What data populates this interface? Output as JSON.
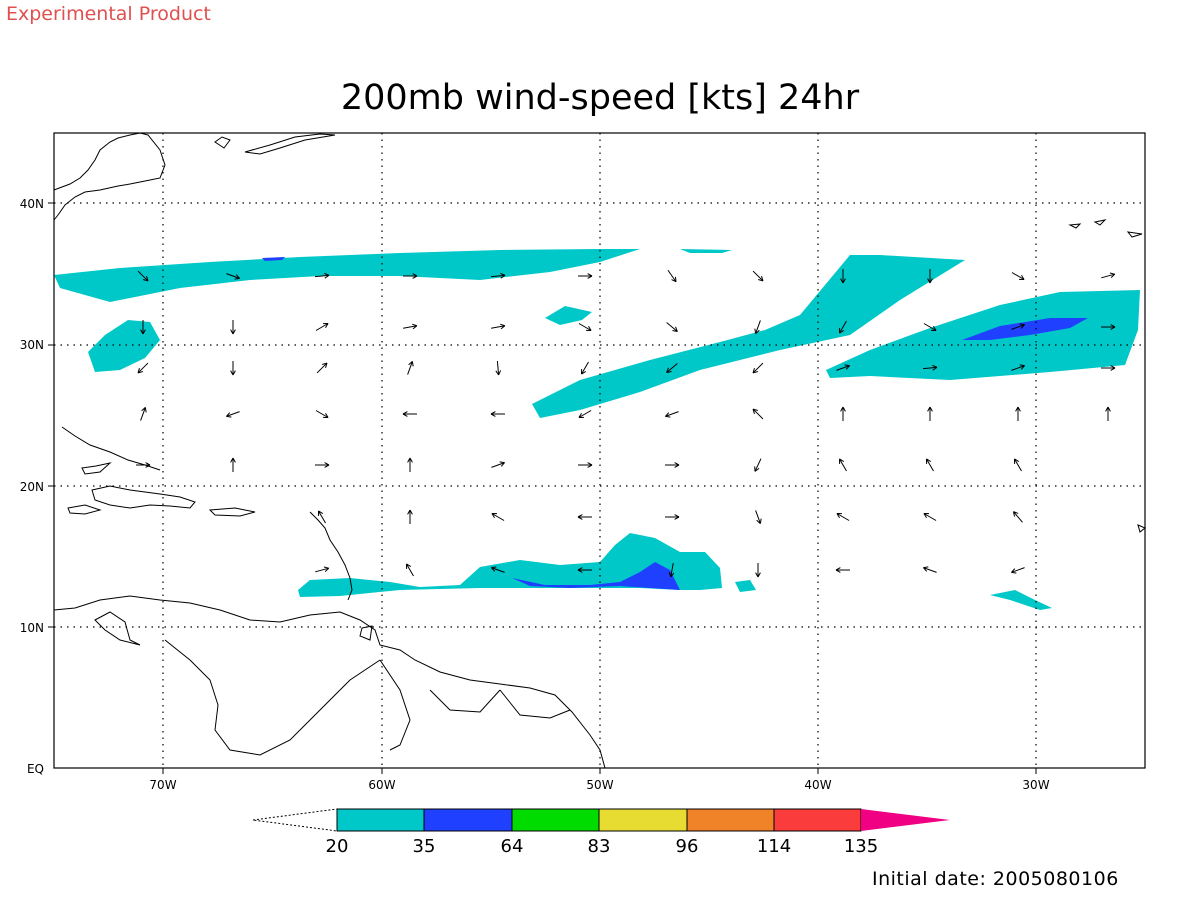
{
  "header": {
    "experimental": "Experimental Product",
    "title": "200mb wind-speed [kts] 24hr"
  },
  "footer": {
    "initial_date": "Initial date: 2005080106"
  },
  "map": {
    "lon_ticks": [
      "70W",
      "60W",
      "50W",
      "40W",
      "30W"
    ],
    "lat_ticks": [
      "40N",
      "30N",
      "20N",
      "10N",
      "EQ"
    ]
  },
  "colorbar": {
    "labels": [
      "20",
      "35",
      "64",
      "83",
      "96",
      "114",
      "135"
    ],
    "colors": [
      "#00c8c8",
      "#2040ff",
      "#00dc00",
      "#e6dc32",
      "#f08228",
      "#fa3c3c",
      "#f00082"
    ]
  },
  "colors": {
    "cyan": "#00c8c8",
    "blue": "#2040ff"
  }
}
